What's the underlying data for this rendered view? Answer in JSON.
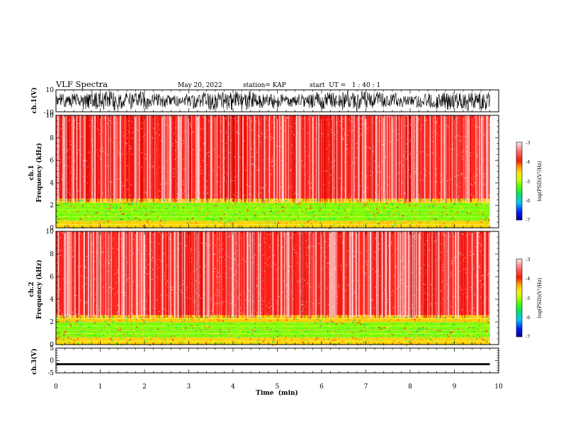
{
  "header": {
    "title": "VLF Spectra",
    "date": "May 20, 2022",
    "station": "station= KAP",
    "start": "start  UT =   1 : 40 : 1"
  },
  "colors": {
    "scale": [
      "#00009a",
      "#0018ff",
      "#00c8ff",
      "#00e070",
      "#3cff00",
      "#c8ff00",
      "#ffe600",
      "#ff9900",
      "#ff3000",
      "#ff6a6a",
      "#ffd0d0"
    ],
    "trace": "#000000"
  },
  "chart_data": [
    {
      "type": "line",
      "panel": "ch1-waveform",
      "ylabel": "ch.1(V)",
      "ylim": [
        -10,
        10
      ],
      "yticks": [
        "10",
        "-10"
      ],
      "series": [
        {
          "description": "dense noisy waveform filling roughly -9 to +8 V over 0-9.8 min"
        }
      ]
    },
    {
      "type": "heatmap",
      "panel": "ch1-spectrogram",
      "ylabel_top": "ch.1",
      "ylabel": "Frequency  (kHz)",
      "ylim": [
        0,
        10
      ],
      "yticks": [
        "0",
        "2",
        "4",
        "6",
        "8",
        "10"
      ],
      "xlim": [
        0,
        9.8
      ],
      "bands": [
        {
          "freq_khz": [
            2.5,
            10
          ],
          "level": "red speckle",
          "log_psd": -3.8
        },
        {
          "freq_khz": [
            2.2,
            2.6
          ],
          "level": "yellow/red band",
          "log_psd": -4.3
        },
        {
          "freq_khz": [
            0.6,
            2.2
          ],
          "level": "green/yellow",
          "log_psd": -4.8
        },
        {
          "freq_khz": [
            0,
            0.6
          ],
          "level": "yellow/red",
          "log_psd": -4.2
        }
      ],
      "colorbar": {
        "label": "log(PSD)(V²/Hz)",
        "ticks": [
          "-3",
          "-4",
          "-5",
          "-6",
          "-7"
        ],
        "range": [
          -7,
          -3
        ]
      }
    },
    {
      "type": "heatmap",
      "panel": "ch2-spectrogram",
      "ylabel_top": "ch.2",
      "ylabel": "Frequency  (kHz)",
      "ylim": [
        0,
        10
      ],
      "yticks": [
        "0",
        "2",
        "4",
        "6",
        "8",
        "10"
      ],
      "xlim": [
        0,
        9.8
      ],
      "bands": [
        {
          "freq_khz": [
            2.6,
            10
          ],
          "level": "red speckle",
          "log_psd": -3.8
        },
        {
          "freq_khz": [
            2.0,
            2.6
          ],
          "level": "yellow/red band",
          "log_psd": -4.3
        },
        {
          "freq_khz": [
            0.6,
            2.0
          ],
          "level": "green/yellow",
          "log_psd": -4.8
        },
        {
          "freq_khz": [
            0,
            0.6
          ],
          "level": "yellow/red",
          "log_psd": -4.2
        }
      ],
      "colorbar": {
        "label": "log(PSD)(V²/Hz)",
        "ticks": [
          "-3",
          "-4",
          "-5",
          "-6",
          "-7"
        ],
        "range": [
          -7,
          -3
        ]
      }
    },
    {
      "type": "line",
      "panel": "ch3-waveform",
      "ylabel": "ch.3(V)",
      "ylim": [
        -5,
        5
      ],
      "yticks": [
        "5",
        "0",
        "-5"
      ],
      "series": [
        {
          "description": "flat thick trace near -1.5 V over 0-9.8 min"
        }
      ]
    }
  ],
  "xaxis": {
    "label": "Time  (min)",
    "xlim": [
      0,
      10
    ],
    "ticks": [
      "0",
      "1",
      "2",
      "3",
      "4",
      "5",
      "6",
      "7",
      "8",
      "9",
      "10"
    ]
  }
}
